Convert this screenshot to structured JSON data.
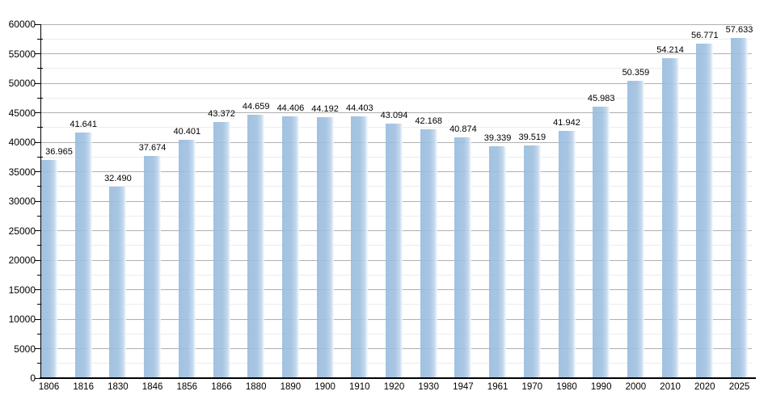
{
  "chart_data": {
    "type": "bar",
    "title": "",
    "xlabel": "",
    "ylabel": "",
    "categories": [
      "1806",
      "1816",
      "1830",
      "1846",
      "1856",
      "1866",
      "1880",
      "1890",
      "1900",
      "1910",
      "1920",
      "1930",
      "1947",
      "1961",
      "1970",
      "1980",
      "1990",
      "2000",
      "2010",
      "2020",
      "2025"
    ],
    "values": [
      36965,
      41641,
      32490,
      37674,
      40401,
      43372,
      44659,
      44406,
      44192,
      44403,
      43094,
      42168,
      40874,
      39339,
      39519,
      41942,
      45983,
      50359,
      54214,
      56771,
      57633
    ],
    "value_labels": [
      "36.965",
      "41.641",
      "32.490",
      "37.674",
      "40.401",
      "43.372",
      "44.659",
      "44.406",
      "44.192",
      "44.403",
      "43.094",
      "42.168",
      "40.874",
      "39.339",
      "39.519",
      "41.942",
      "45.983",
      "50.359",
      "54.214",
      "56.771",
      "57.633"
    ],
    "ylim": [
      0,
      60000
    ],
    "y_major_step": 5000,
    "y_minor_step": 2500,
    "y_tick_labels": [
      "0",
      "5000",
      "10000",
      "15000",
      "20000",
      "25000",
      "30000",
      "35000",
      "40000",
      "45000",
      "50000",
      "55000",
      "60000"
    ],
    "grid": "on",
    "legend": "none",
    "colors": {
      "bar_fill": "#9fc0e0",
      "bar_fade": "#ffffff",
      "major_grid": "#b0b0b0",
      "minor_grid": "#ececec",
      "axis": "#000000",
      "text": "#000000",
      "background": "#ffffff"
    }
  }
}
